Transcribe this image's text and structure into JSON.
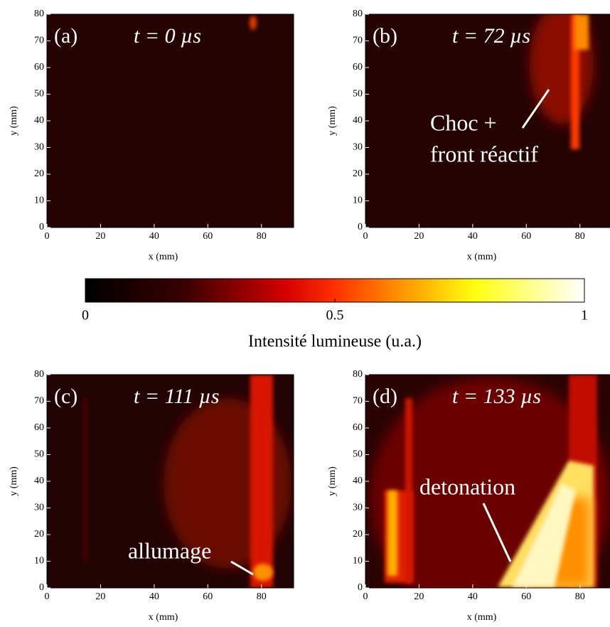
{
  "chart_data": [
    {
      "type": "heatmap",
      "panel": "(a)",
      "time": "t = 0 µs",
      "xlabel": "x (mm)",
      "ylabel": "y (mm)",
      "xlim": [
        0,
        92
      ],
      "ylim": [
        0,
        80
      ],
      "xticks": [
        0,
        20,
        40,
        60,
        80
      ],
      "yticks": [
        0,
        10,
        20,
        30,
        40,
        50,
        60,
        70,
        80
      ],
      "annotations": []
    },
    {
      "type": "heatmap",
      "panel": "(b)",
      "time": "t = 72 µs",
      "xlabel": "x (mm)",
      "ylabel": "y (mm)",
      "xlim": [
        0,
        92
      ],
      "ylim": [
        0,
        80
      ],
      "xticks": [
        0,
        20,
        40,
        60,
        80
      ],
      "yticks": [
        0,
        10,
        20,
        30,
        40,
        50,
        60,
        70,
        80
      ],
      "annotations": [
        "Choc +",
        "front réactif"
      ]
    },
    {
      "type": "heatmap",
      "panel": "(c)",
      "time": "t = 111 µs",
      "xlabel": "x (mm)",
      "ylabel": "y (mm)",
      "xlim": [
        0,
        92
      ],
      "ylim": [
        0,
        80
      ],
      "xticks": [
        0,
        20,
        40,
        60,
        80
      ],
      "yticks": [
        0,
        10,
        20,
        30,
        40,
        50,
        60,
        70,
        80
      ],
      "annotations": [
        "allumage"
      ]
    },
    {
      "type": "heatmap",
      "panel": "(d)",
      "time": "t = 133 µs",
      "xlabel": "x (mm)",
      "ylabel": "y (mm)",
      "xlim": [
        0,
        92
      ],
      "ylim": [
        0,
        80
      ],
      "xticks": [
        0,
        20,
        40,
        60,
        80
      ],
      "yticks": [
        0,
        10,
        20,
        30,
        40,
        50,
        60,
        70,
        80
      ],
      "annotations": [
        "detonation"
      ]
    }
  ],
  "colorbar": {
    "label": "Intensité lumineuse (u.a.)",
    "lim": [
      0,
      1
    ],
    "ticks": [
      0,
      0.5,
      1
    ]
  }
}
